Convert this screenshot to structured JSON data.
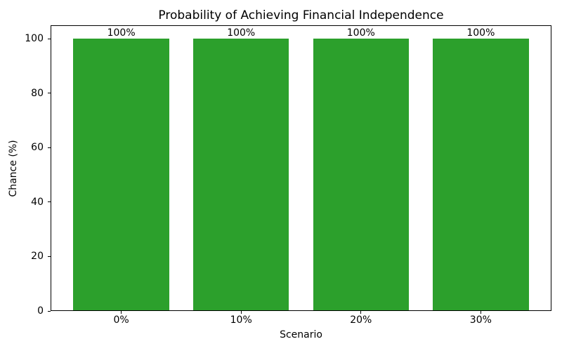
{
  "chart_data": {
    "type": "bar",
    "title": "Probability of Achieving Financial Independence",
    "xlabel": "Scenario",
    "ylabel": "Chance (%)",
    "categories": [
      "0%",
      "10%",
      "20%",
      "30%"
    ],
    "values": [
      100,
      100,
      100,
      100
    ],
    "bar_labels": [
      "100%",
      "100%",
      "100%",
      "100%"
    ],
    "ytick_values": [
      0,
      20,
      40,
      60,
      80,
      100
    ],
    "ylim": [
      0,
      105
    ],
    "bar_color": "#2ca02c",
    "text_color": "#000000",
    "grid": false,
    "legend_position": "none"
  }
}
